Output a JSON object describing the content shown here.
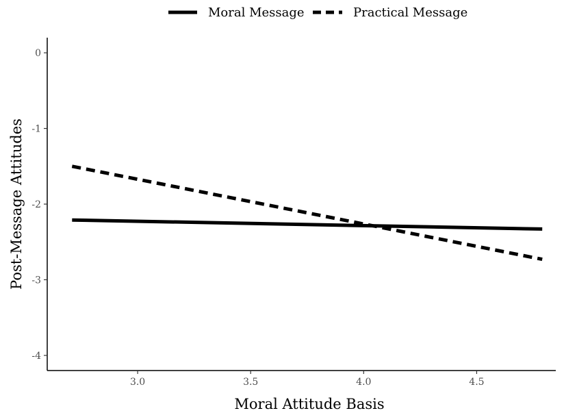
{
  "chart_data": {
    "type": "line",
    "xlabel": "Moral Attitude Basis",
    "ylabel": "Post-Message Attitudes",
    "xlim": [
      2.6,
      4.85
    ],
    "ylim": [
      -4.2,
      0.2
    ],
    "x_ticks": [
      3.0,
      3.5,
      4.0,
      4.5
    ],
    "x_tick_labels": [
      "3.0",
      "3.5",
      "4.0",
      "4.5"
    ],
    "y_ticks": [
      0,
      -1,
      -2,
      -3,
      -4
    ],
    "y_tick_labels": [
      "0",
      "-1",
      "-2",
      "-3",
      "-4"
    ],
    "grid": false,
    "legend_position": "top",
    "series": [
      {
        "name": "Moral Message",
        "linestyle": "solid",
        "color": "#000000",
        "x": [
          2.71,
          4.79
        ],
        "y": [
          -2.21,
          -2.33
        ]
      },
      {
        "name": "Practical Message",
        "linestyle": "dashed",
        "color": "#000000",
        "x": [
          2.71,
          4.79
        ],
        "y": [
          -1.5,
          -2.73
        ]
      }
    ]
  }
}
